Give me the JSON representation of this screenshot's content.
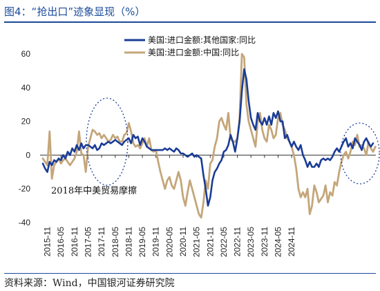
{
  "figure": {
    "title": "图4：“抢出口”迹象显现（%）",
    "source": "资料来源：Wind，中国银河证券研究院"
  },
  "chart_data": {
    "type": "line",
    "ylim": [
      -40,
      60
    ],
    "yticks": [
      -40,
      -20,
      0,
      20,
      40,
      60
    ],
    "xticks": [
      "2015-11",
      "2016-05",
      "2016-11",
      "2017-05",
      "2017-11",
      "2018-05",
      "2018-11",
      "2019-05",
      "2019-11",
      "2020-05",
      "2020-11",
      "2021-05",
      "2021-11",
      "2022-05",
      "2022-11",
      "2023-05",
      "2023-11",
      "2024-05",
      "2024-11"
    ],
    "x_start": "2015-09",
    "legend_position": "top",
    "annotations": [
      {
        "text": "2018年中美贸易摩擦"
      }
    ],
    "series": [
      {
        "name": "美国:进口金额:其他国家:同比",
        "color": "#1a3c96",
        "values": [
          -5,
          -8,
          -10,
          -4,
          -6,
          -3,
          -4,
          -2,
          -3,
          0,
          -2,
          2,
          0,
          4,
          2,
          6,
          3,
          7,
          4,
          6,
          6,
          5,
          4,
          6,
          3,
          4,
          7,
          6,
          7,
          8,
          7,
          8,
          9,
          8,
          7,
          6,
          8,
          9,
          10,
          7,
          12,
          10,
          11,
          6,
          10,
          8,
          5,
          4,
          3,
          3,
          3,
          3,
          3,
          3,
          4,
          3,
          4,
          3,
          2,
          4,
          3,
          1,
          1,
          0,
          -1,
          0,
          1,
          -1,
          0,
          -1,
          -2,
          -12,
          -20,
          -30,
          -25,
          -15,
          -10,
          -8,
          -5,
          -3,
          2,
          3,
          6,
          12,
          8,
          2,
          10,
          20,
          38,
          51,
          45,
          32,
          22,
          18,
          15,
          25,
          20,
          18,
          22,
          18,
          23,
          18,
          25,
          22,
          26,
          20,
          20,
          10,
          12,
          8,
          5,
          8,
          5,
          3,
          6,
          0,
          -3,
          -7,
          -4,
          -7,
          -7,
          -5,
          -7,
          -3,
          -2,
          -3,
          -2,
          -3,
          -1,
          2,
          4,
          2,
          5,
          8,
          10,
          5,
          7,
          4,
          10,
          8,
          6,
          3,
          8,
          10,
          7,
          5,
          7
        ],
        "stroke_width": 2.6
      },
      {
        "name": "美国:进口金额:中国:同比",
        "color": "#c4a67a",
        "values": [
          -2,
          -4,
          -6,
          14,
          -14,
          -6,
          -4,
          -2,
          -5,
          -3,
          -2,
          -4,
          -6,
          -4,
          -2,
          2,
          14,
          1,
          0,
          -10,
          5,
          10,
          15,
          14,
          12,
          13,
          10,
          12,
          10,
          8,
          9,
          12,
          10,
          11,
          8,
          8,
          12,
          13,
          19,
          14,
          7,
          5,
          6,
          4,
          7,
          10,
          5,
          10,
          3,
          2,
          3,
          -4,
          -10,
          -15,
          -20,
          -15,
          -13,
          -18,
          -20,
          -15,
          -10,
          -15,
          -25,
          -30,
          -22,
          -15,
          -20,
          -25,
          -30,
          -35,
          -37,
          -28,
          -15,
          -20,
          -5,
          -3,
          5,
          10,
          20,
          22,
          18,
          15,
          25,
          10,
          8,
          8,
          10,
          22,
          60,
          58,
          30,
          20,
          15,
          10,
          5,
          20,
          25,
          15,
          10,
          8,
          18,
          15,
          10,
          12,
          22,
          25,
          18,
          15,
          10,
          8,
          5,
          0,
          -8,
          -20,
          -25,
          -22,
          -25,
          -20,
          -35,
          -30,
          -18,
          -22,
          -28,
          -26,
          -24,
          -18,
          -28,
          -22,
          -24,
          -16,
          -18,
          -10,
          -4,
          0,
          2,
          -2,
          2,
          8,
          6,
          12,
          5,
          6,
          4,
          0,
          8,
          4,
          2,
          5
        ]
      }
    ]
  }
}
